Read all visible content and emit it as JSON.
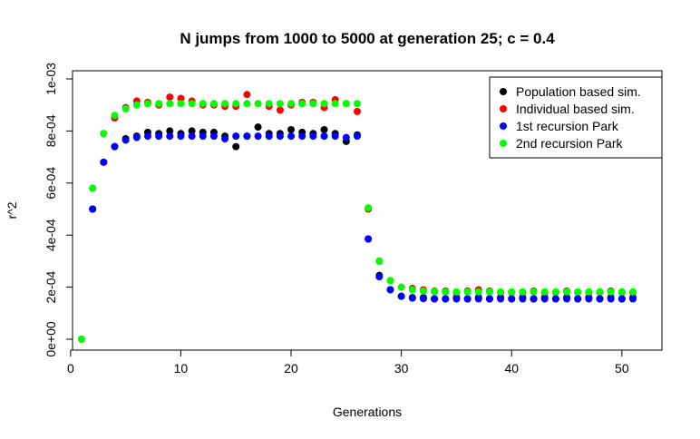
{
  "chart_data": {
    "type": "scatter",
    "title": "N jumps from 1000 to 5000 at generation 25; c = 0.4",
    "xlabel": "Generations",
    "ylabel": "r^2",
    "xlim": [
      0,
      52
    ],
    "ylim": [
      0,
      0.001
    ],
    "x_ticks": [
      0,
      10,
      20,
      30,
      40,
      50
    ],
    "x_tick_labels": [
      "0",
      "10",
      "20",
      "30",
      "40",
      "50"
    ],
    "y_ticks": [
      0,
      0.0002,
      0.0004,
      0.0006,
      0.0008,
      0.001
    ],
    "y_tick_labels": [
      "0e+00",
      "2e-04",
      "4e-04",
      "6e-04",
      "8e-04",
      "1e-03"
    ],
    "grid": false,
    "legend_position": "top-right",
    "series": [
      {
        "name": "Population based sim.",
        "color": "#000000",
        "x": [
          2,
          3,
          4,
          5,
          6,
          7,
          8,
          9,
          10,
          11,
          12,
          13,
          14,
          15,
          16,
          17,
          18,
          19,
          20,
          21,
          22,
          23,
          24,
          25,
          26,
          27,
          28,
          29,
          30,
          31,
          32,
          33,
          34,
          35,
          36,
          37,
          38,
          39,
          40,
          41,
          42,
          43,
          44,
          45,
          46,
          47,
          48,
          49,
          50,
          51
        ],
        "y": [
          0.0005,
          0.00068,
          0.00074,
          0.00077,
          0.00078,
          0.000795,
          0.00079,
          0.0008,
          0.00079,
          0.0008,
          0.000795,
          0.000795,
          0.00078,
          0.00074,
          0.00078,
          0.000815,
          0.00079,
          0.00079,
          0.000805,
          0.000795,
          0.00079,
          0.000805,
          0.00079,
          0.00076,
          0.000785,
          0.000385,
          0.000245,
          0.00019,
          0.000165,
          0.00016,
          0.00016,
          0.000155,
          0.000155,
          0.00016,
          0.000155,
          0.00016,
          0.000155,
          0.00016,
          0.000155,
          0.00016,
          0.000155,
          0.00016,
          0.000155,
          0.00016,
          0.000155,
          0.00016,
          0.000155,
          0.00016,
          0.000155,
          0.00016
        ]
      },
      {
        "name": "Individual based sim.",
        "color": "#ff0000",
        "x": [
          1,
          2,
          3,
          4,
          5,
          6,
          7,
          8,
          9,
          10,
          11,
          12,
          13,
          14,
          15,
          16,
          17,
          18,
          19,
          20,
          21,
          22,
          23,
          24,
          25,
          26,
          27,
          28,
          29,
          30,
          31,
          32,
          33,
          34,
          35,
          36,
          37,
          38,
          39,
          40,
          41,
          42,
          43,
          44,
          45,
          46,
          47,
          48,
          49,
          50,
          51
        ],
        "y": [
          0,
          0.00058,
          0.00079,
          0.00085,
          0.00089,
          0.000915,
          0.00091,
          0.0009,
          0.00093,
          0.000925,
          0.000915,
          0.0009,
          0.0009,
          0.000895,
          0.000895,
          0.00094,
          0.000905,
          0.000895,
          0.00088,
          0.0009,
          0.00091,
          0.00091,
          0.00089,
          0.00092,
          0.000905,
          0.000875,
          0.0005,
          0.0003,
          0.000225,
          0.0002,
          0.000195,
          0.00019,
          0.000185,
          0.000185,
          0.00018,
          0.000185,
          0.00019,
          0.000185,
          0.00018,
          0.00018,
          0.00018,
          0.000185,
          0.00018,
          0.00018,
          0.000185,
          0.00018,
          0.00018,
          0.00018,
          0.000185,
          0.00018,
          0.00018
        ]
      },
      {
        "name": "1st recursion Park",
        "color": "#0000ff",
        "x": [
          2,
          3,
          4,
          5,
          6,
          7,
          8,
          9,
          10,
          11,
          12,
          13,
          14,
          15,
          16,
          17,
          18,
          19,
          20,
          21,
          22,
          23,
          24,
          25,
          26,
          27,
          28,
          29,
          30,
          31,
          32,
          33,
          34,
          35,
          36,
          37,
          38,
          39,
          40,
          41,
          42,
          43,
          44,
          45,
          46,
          47,
          48,
          49,
          50,
          51
        ],
        "y": [
          0.0005,
          0.00068,
          0.00074,
          0.000765,
          0.000775,
          0.00078,
          0.00078,
          0.00078,
          0.00078,
          0.00078,
          0.00078,
          0.00078,
          0.00077,
          0.00078,
          0.00078,
          0.00078,
          0.00078,
          0.00078,
          0.00078,
          0.00078,
          0.00078,
          0.00078,
          0.00078,
          0.000775,
          0.00078,
          0.000385,
          0.00024,
          0.00019,
          0.000165,
          0.000158,
          0.000156,
          0.000155,
          0.000155,
          0.000155,
          0.000155,
          0.000155,
          0.000155,
          0.000155,
          0.000155,
          0.000155,
          0.000155,
          0.000155,
          0.000155,
          0.000155,
          0.000155,
          0.000155,
          0.000155,
          0.000155,
          0.000155,
          0.000155
        ]
      },
      {
        "name": "2nd recursion Park",
        "color": "#00ff00",
        "x": [
          1,
          2,
          3,
          4,
          5,
          6,
          7,
          8,
          9,
          10,
          11,
          12,
          13,
          14,
          15,
          16,
          17,
          18,
          19,
          20,
          21,
          22,
          23,
          24,
          25,
          26,
          27,
          28,
          29,
          30,
          31,
          32,
          33,
          34,
          35,
          36,
          37,
          38,
          39,
          40,
          41,
          42,
          43,
          44,
          45,
          46,
          47,
          48,
          49,
          50,
          51
        ],
        "y": [
          0,
          0.00058,
          0.00079,
          0.00086,
          0.000885,
          0.0009,
          0.000905,
          0.000905,
          0.000905,
          0.000905,
          0.000905,
          0.000905,
          0.000905,
          0.000905,
          0.000905,
          0.000905,
          0.000905,
          0.000905,
          0.000905,
          0.000905,
          0.000905,
          0.000905,
          0.000905,
          0.000905,
          0.000905,
          0.000905,
          0.000505,
          0.0003,
          0.000225,
          0.0002,
          0.00019,
          0.000185,
          0.000183,
          0.000182,
          0.000182,
          0.000182,
          0.000182,
          0.000182,
          0.000182,
          0.000182,
          0.000182,
          0.000182,
          0.000182,
          0.000182,
          0.000182,
          0.000182,
          0.000182,
          0.000182,
          0.000182,
          0.000182,
          0.000182
        ]
      }
    ]
  }
}
